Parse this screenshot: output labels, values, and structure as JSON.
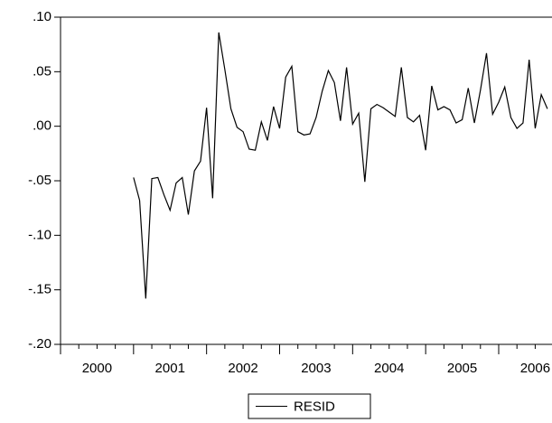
{
  "chart_data": {
    "type": "line",
    "x": [
      2001,
      2001.083,
      2001.167,
      2001.25,
      2001.333,
      2001.417,
      2001.5,
      2001.583,
      2001.667,
      2001.75,
      2001.833,
      2001.917,
      2002,
      2002.083,
      2002.167,
      2002.25,
      2002.333,
      2002.417,
      2002.5,
      2002.583,
      2002.667,
      2002.75,
      2002.833,
      2002.917,
      2003,
      2003.083,
      2003.167,
      2003.25,
      2003.333,
      2003.417,
      2003.5,
      2003.583,
      2003.667,
      2003.75,
      2003.833,
      2003.917,
      2004,
      2004.083,
      2004.167,
      2004.25,
      2004.333,
      2004.417,
      2004.5,
      2004.583,
      2004.667,
      2004.75,
      2004.833,
      2004.917,
      2005,
      2005.083,
      2005.167,
      2005.25,
      2005.333,
      2005.417,
      2005.5,
      2005.583,
      2005.667,
      2005.75,
      2005.833,
      2005.917,
      2006,
      2006.083,
      2006.167,
      2006.25,
      2006.333,
      2006.417,
      2006.5,
      2006.583,
      2006.667
    ],
    "series": [
      {
        "name": "RESID",
        "color": "#000000",
        "values": [
          -0.047,
          -0.068,
          -0.158,
          -0.048,
          -0.047,
          -0.063,
          -0.077,
          -0.052,
          -0.047,
          -0.081,
          -0.041,
          -0.032,
          0.017,
          -0.066,
          0.086,
          0.052,
          0.016,
          -0.001,
          -0.005,
          -0.021,
          -0.022,
          0.004,
          -0.013,
          0.018,
          -0.002,
          0.045,
          0.055,
          -0.005,
          -0.008,
          -0.007,
          0.008,
          0.032,
          0.051,
          0.04,
          0.005,
          0.054,
          0.002,
          0.012,
          -0.051,
          0.016,
          0.02,
          0.017,
          0.013,
          0.009,
          0.054,
          0.008,
          0.004,
          0.01,
          -0.022,
          0.037,
          0.015,
          0.018,
          0.015,
          0.003,
          0.006,
          0.035,
          0.003,
          0.033,
          0.067,
          0.011,
          0.022,
          0.036,
          0.008,
          -0.002,
          0.003,
          0.061,
          -0.002,
          0.029,
          0.016
        ]
      }
    ],
    "xlim": [
      2000,
      2006.73
    ],
    "xticks": [
      2000,
      2001,
      2002,
      2003,
      2004,
      2005,
      2006
    ],
    "ylim": [
      -0.2,
      0.1
    ],
    "yticks": [
      {
        "value": -0.2,
        "label": "-.20"
      },
      {
        "value": -0.15,
        "label": "-.15"
      },
      {
        "value": -0.1,
        "label": "-.10"
      },
      {
        "value": -0.05,
        "label": "-.05"
      },
      {
        "value": 0,
        "label": ".00"
      },
      {
        "value": 0.05,
        "label": ".05"
      },
      {
        "value": 0.1,
        "label": ".10"
      }
    ],
    "legend": "bottom"
  }
}
